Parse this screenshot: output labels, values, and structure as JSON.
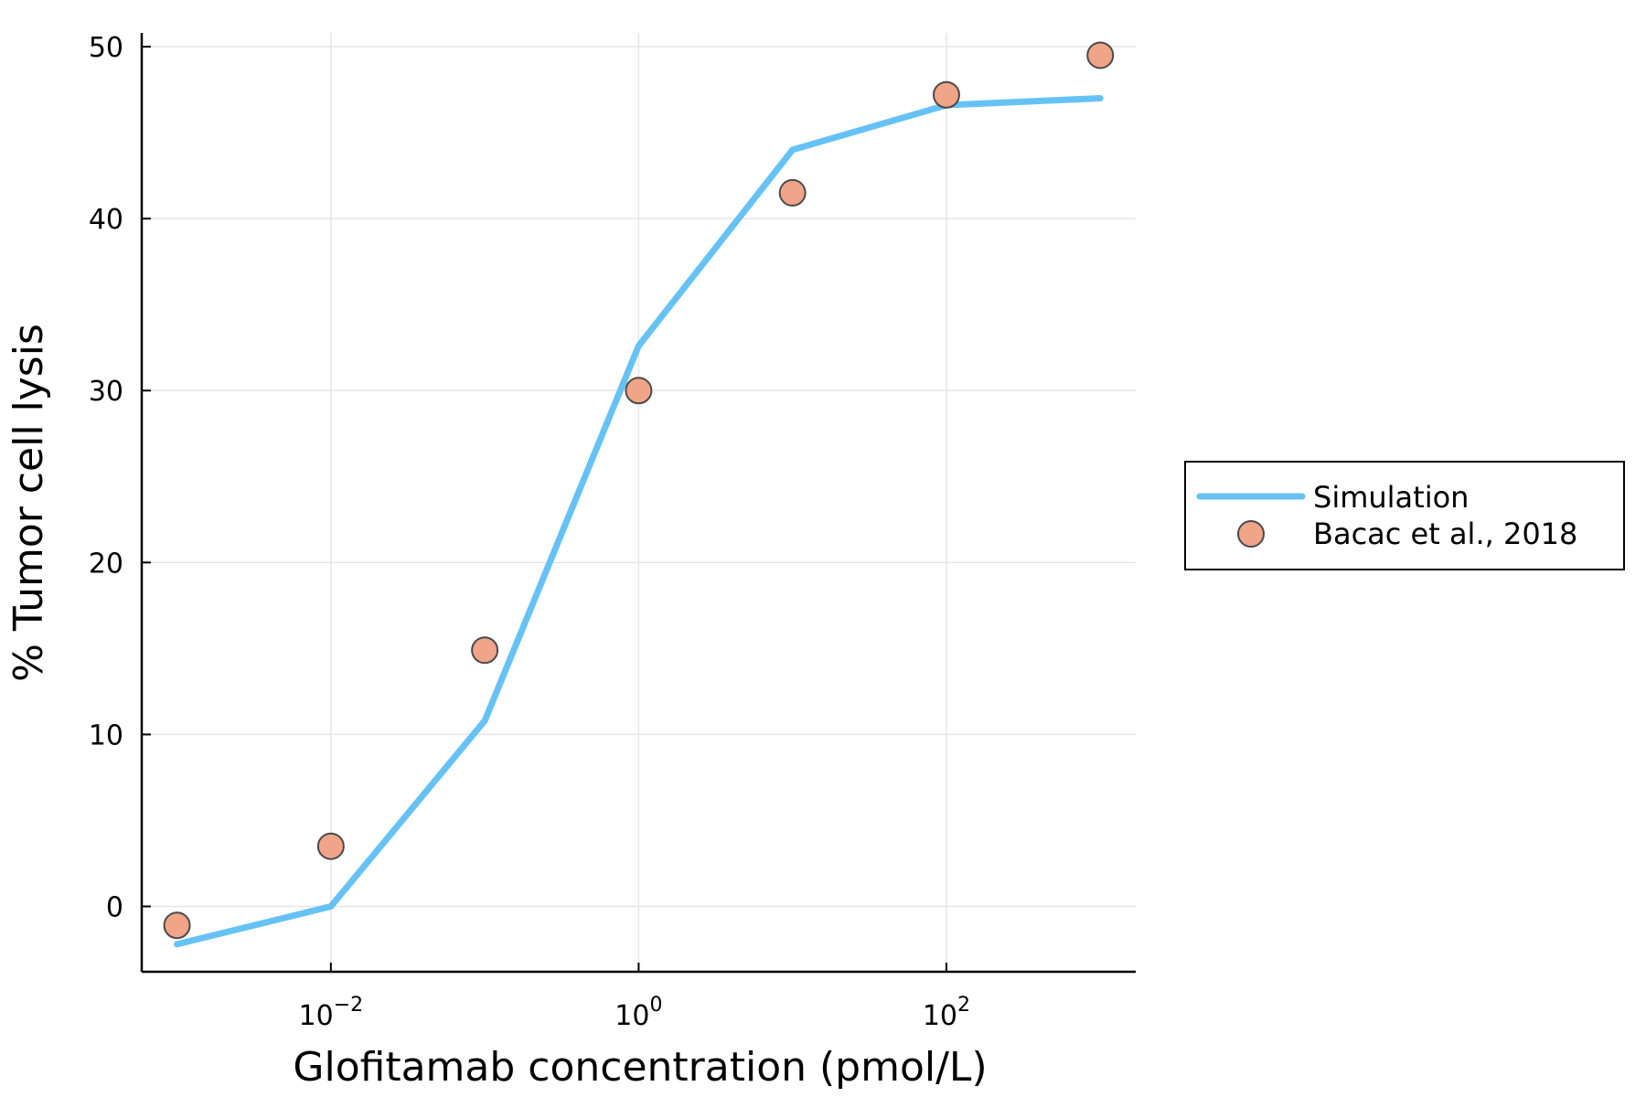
{
  "chart_data": {
    "type": "line",
    "xlabel": "Glofitamab concentration (pmol/L)",
    "ylabel": "% Tumor cell lysis",
    "xscale": "log10",
    "xlim": [
      0.00059,
      1700
    ],
    "ylim": [
      -3.8,
      50.8
    ],
    "grid": true,
    "legend_position": "outside-right",
    "x_ticks": [
      {
        "value": 0.01,
        "base": "10",
        "exp": "−2"
      },
      {
        "value": 1,
        "base": "10",
        "exp": "0"
      },
      {
        "value": 100,
        "base": "10",
        "exp": "2"
      }
    ],
    "y_ticks": [
      0,
      10,
      20,
      30,
      40,
      50
    ],
    "series": [
      {
        "name": "Simulation",
        "kind": "line",
        "color": "#66c2f5",
        "x": [
          0.001,
          0.01,
          0.1,
          1,
          10,
          100,
          1000
        ],
        "y": [
          -2.2,
          0.0,
          10.8,
          32.6,
          44.0,
          46.6,
          47.0
        ]
      },
      {
        "name": "Bacac et al., 2018",
        "kind": "scatter",
        "color": "#f0a488",
        "x": [
          0.001,
          0.01,
          0.1,
          1,
          10,
          100,
          1000
        ],
        "y": [
          -1.1,
          3.5,
          14.9,
          30.0,
          41.5,
          47.2,
          49.5
        ]
      }
    ]
  }
}
